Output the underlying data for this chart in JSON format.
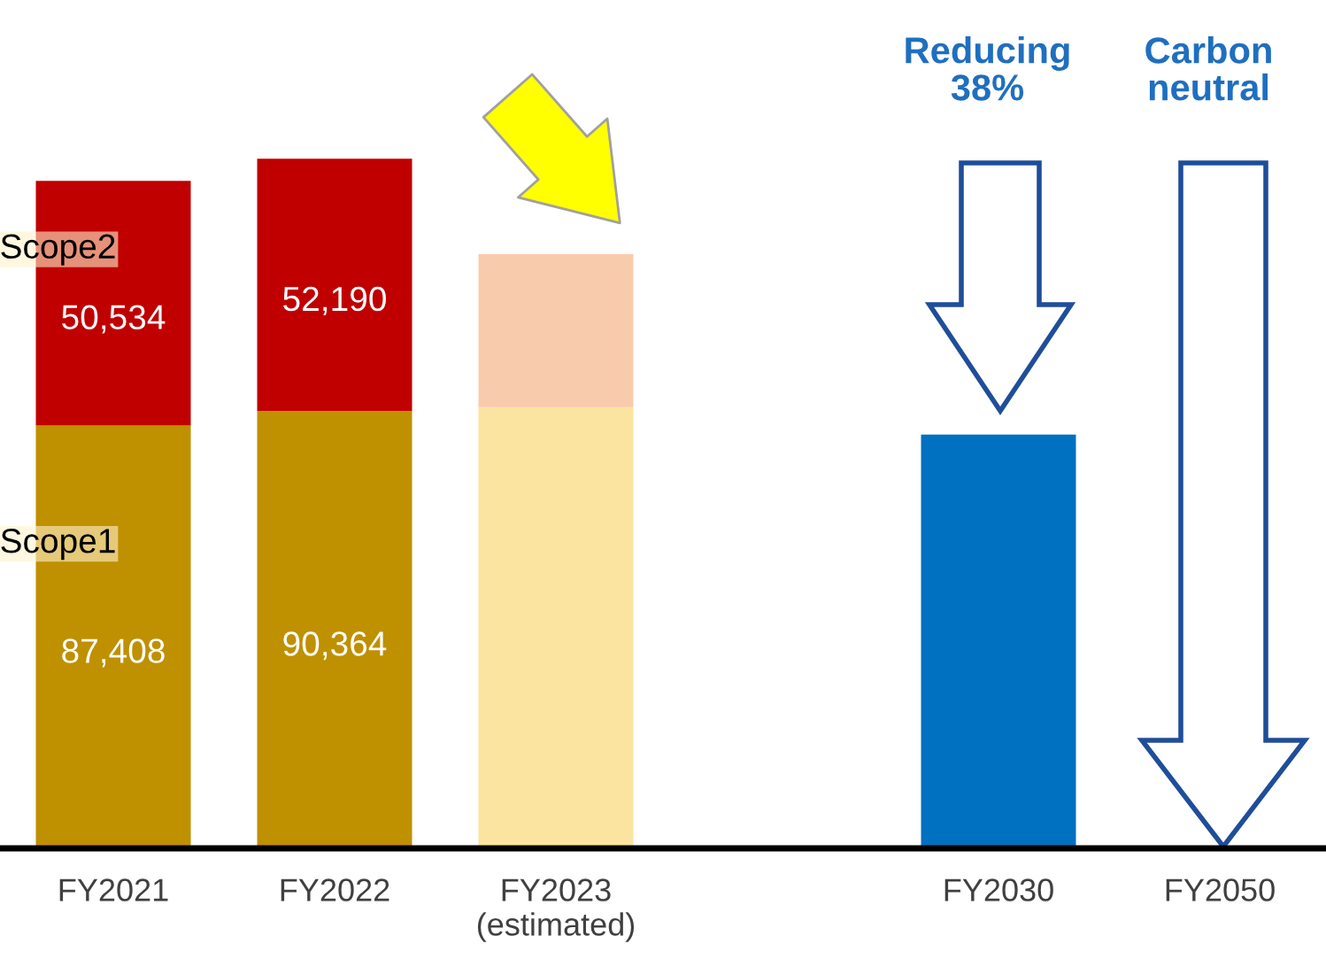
{
  "chart_data": {
    "type": "bar",
    "stacked": true,
    "categories": [
      "FY2021",
      "FY2022",
      "FY2023\n(estimated)",
      null,
      "FY2030",
      "FY2050"
    ],
    "series": [
      {
        "name": "Scope1",
        "colors": [
          "#bf9000",
          "#bf9000",
          "#fbe3a0",
          null,
          null,
          null
        ],
        "values": [
          87408,
          90364,
          91200,
          null,
          null,
          0
        ],
        "value_labels": [
          "87,408",
          "90,364",
          null,
          null,
          null,
          null
        ]
      },
      {
        "name": "Scope2",
        "colors": [
          "#c00000",
          "#c00000",
          "#f8cbad",
          null,
          null,
          null
        ],
        "values": [
          50534,
          52190,
          31600,
          null,
          null,
          null
        ],
        "value_labels": [
          "50,534",
          "52,190",
          null,
          null,
          null,
          null
        ]
      },
      {
        "colors": [
          null,
          null,
          null,
          null,
          "#0070c0",
          null
        ],
        "values": [
          null,
          null,
          null,
          null,
          85500,
          null
        ]
      }
    ],
    "annotations": [
      "Reducing\n38%",
      "Carbon\nneutral"
    ]
  }
}
